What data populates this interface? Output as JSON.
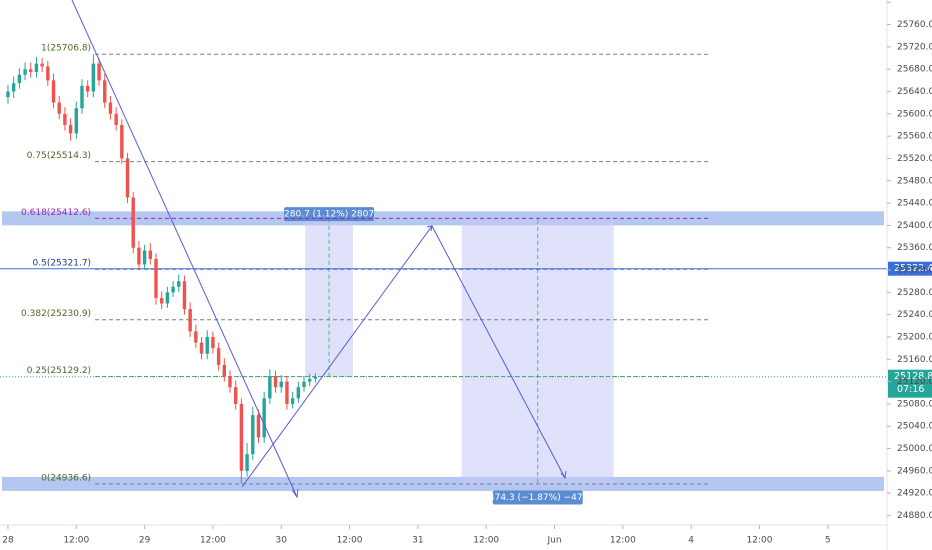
{
  "chart_data": {
    "type": "candlestick",
    "xlim": [
      -1.4,
      154.4
    ],
    "ylim": [
      24863,
      25804
    ],
    "xticks": [
      {
        "value": 0,
        "label": "28"
      },
      {
        "value": 12,
        "label": "12:00"
      },
      {
        "value": 24,
        "label": "29"
      },
      {
        "value": 36,
        "label": "12:00"
      },
      {
        "value": 48,
        "label": "30"
      },
      {
        "value": 60,
        "label": "12:00"
      },
      {
        "value": 72,
        "label": "31"
      },
      {
        "value": 84,
        "label": "12:00"
      },
      {
        "value": 96,
        "label": "Jun"
      },
      {
        "value": 108,
        "label": "12:00"
      },
      {
        "value": 120,
        "label": "4"
      },
      {
        "value": 132,
        "label": "12:00"
      },
      {
        "value": 144,
        "label": "5"
      }
    ],
    "yticks": [
      {
        "value": 24880,
        "label": "24880.0"
      },
      {
        "value": 24920,
        "label": "24920.0"
      },
      {
        "value": 24960,
        "label": "24960.0"
      },
      {
        "value": 25000,
        "label": "25000.0"
      },
      {
        "value": 25040,
        "label": "25040.0"
      },
      {
        "value": 25080,
        "label": "25080.0"
      },
      {
        "value": 25120,
        "label": "25120.0"
      },
      {
        "value": 25160,
        "label": "25160.0"
      },
      {
        "value": 25200,
        "label": "25200.0"
      },
      {
        "value": 25240,
        "label": "25240.0"
      },
      {
        "value": 25280,
        "label": "25280.0"
      },
      {
        "value": 25320,
        "label": "25320.0"
      },
      {
        "value": 25360,
        "label": "25360.0"
      },
      {
        "value": 25400,
        "label": "25400.0"
      },
      {
        "value": 25440,
        "label": "25440.0"
      },
      {
        "value": 25480,
        "label": "25480.0"
      },
      {
        "value": 25520,
        "label": "25520.0"
      },
      {
        "value": 25560,
        "label": "25560.0"
      },
      {
        "value": 25600,
        "label": "25600.0"
      },
      {
        "value": 25640,
        "label": "25640.0"
      },
      {
        "value": 25680,
        "label": "25680.0"
      },
      {
        "value": 25720,
        "label": "25720.0"
      },
      {
        "value": 25760,
        "label": "25760.0"
      },
      {
        "value": 25800,
        "label": "25800.0"
      }
    ],
    "up_color": "#26a69a",
    "down_color": "#ef5350",
    "x": [
      0,
      1,
      2,
      3,
      4,
      5,
      6,
      7,
      8,
      9,
      10,
      11,
      12,
      13,
      14,
      15,
      16,
      17,
      18,
      19,
      20,
      21,
      22,
      23,
      24,
      25,
      26,
      27,
      28,
      29,
      30,
      31,
      32,
      33,
      34,
      35,
      36,
      37,
      38,
      39,
      40,
      41,
      42,
      43,
      44,
      45,
      46,
      47,
      48,
      49,
      50,
      51,
      52,
      53,
      54
    ],
    "open": [
      25630,
      25640,
      25655,
      25670,
      25680,
      25675,
      25690,
      25685,
      25660,
      25620,
      25600,
      25580,
      25565,
      25610,
      25650,
      25640,
      25690,
      25660,
      25620,
      25600,
      25580,
      25520,
      25450,
      25360,
      25330,
      25355,
      25340,
      25270,
      25260,
      25280,
      25290,
      25300,
      25250,
      25210,
      25190,
      25170,
      25200,
      25180,
      25150,
      25130,
      25110,
      25080,
      24960,
      24990,
      25060,
      25020,
      25090,
      25130,
      25110,
      25120,
      25080,
      25090,
      25110,
      25120,
      25125
    ],
    "high": [
      25652,
      25667,
      25682,
      25692,
      25692,
      25702,
      25700,
      25695,
      25672,
      25632,
      25612,
      25592,
      25622,
      25662,
      25660,
      25706.8,
      25700,
      25672,
      25632,
      25612,
      25590,
      25530,
      25460,
      25372,
      25365,
      25368,
      25350,
      25282,
      25290,
      25300,
      25312,
      25310,
      25262,
      25222,
      25200,
      25212,
      25210,
      25190,
      25162,
      25140,
      25122,
      25090,
      25010,
      25075,
      25070,
      25102,
      25142,
      25140,
      25132,
      25130,
      25102,
      25120,
      25130,
      25134,
      25135
    ],
    "low": [
      25618,
      25628,
      25645,
      25660,
      25665,
      25665,
      25675,
      25650,
      25610,
      25590,
      25570,
      25552,
      25555,
      25600,
      25630,
      25630,
      25650,
      25610,
      25590,
      25570,
      25510,
      25440,
      25350,
      25320,
      25322,
      25330,
      25258,
      25250,
      25252,
      25272,
      25280,
      25240,
      25200,
      25180,
      25160,
      25160,
      25170,
      25140,
      25120,
      25100,
      25070,
      24936.6,
      24950,
      24980,
      25010,
      25010,
      25080,
      25100,
      25100,
      25070,
      25072,
      25082,
      25102,
      25112,
      25118
    ],
    "close": [
      25640,
      25655,
      25670,
      25680,
      25675,
      25690,
      25685,
      25660,
      25620,
      25600,
      25580,
      25565,
      25610,
      25650,
      25640,
      25690,
      25660,
      25620,
      25600,
      25580,
      25520,
      25450,
      25360,
      25330,
      25355,
      25340,
      25270,
      25260,
      25280,
      25290,
      25300,
      25250,
      25210,
      25190,
      25170,
      25200,
      25180,
      25150,
      25130,
      25110,
      25080,
      24960,
      24990,
      25060,
      25020,
      25090,
      25130,
      25110,
      25120,
      25080,
      25090,
      25110,
      25120,
      25125,
      25128.8
    ],
    "fib_range": [
      15.3,
      123.3
    ],
    "fib_levels": [
      {
        "label": "1(25706.8)",
        "value": 25706.8,
        "color": "#787b86",
        "text_color": "#4a6a2a"
      },
      {
        "label": "0.75(25514.3)",
        "value": 25514.3,
        "color": "#787b86",
        "text_color": "#4a6a2a"
      },
      {
        "label": "0.618(25412.6)",
        "value": 25412.6,
        "color": "#9c27b0",
        "text_color": "#9c27b0"
      },
      {
        "label": "0.5(25321.7)",
        "value": 25321.7,
        "color": "#1e3a8a",
        "text_color": "#1e3a8a"
      },
      {
        "label": "0.382(25230.9)",
        "value": 25230.9,
        "color": "#787b86",
        "text_color": "#4a6a2a"
      },
      {
        "label": "0.25(25129.2)",
        "value": 25129.2,
        "color": "#4caf50",
        "text_color": "#4a6a2a"
      },
      {
        "label": "0(24936.6)",
        "value": 24936.6,
        "color": "#787b86",
        "text_color": "#4a6a2a"
      }
    ],
    "zones": [
      25412.6,
      24936.6
    ],
    "measures": [
      {
        "label": "280.7 (1.12%) 2807",
        "from": 25128.8,
        "to": 25409.5,
        "x_start": 52.2,
        "x_end": 60.6
      },
      {
        "label": "−474.3 (−1.87%) −4743",
        "from": 25410,
        "to": 24935.7,
        "x_start": 79.7,
        "x_end": 106.4
      }
    ],
    "price_line": {
      "label": "25322.4",
      "value": 25322.4
    },
    "last_price": {
      "label": "25128.8",
      "value": 25128.8,
      "countdown": "07:16"
    }
  }
}
